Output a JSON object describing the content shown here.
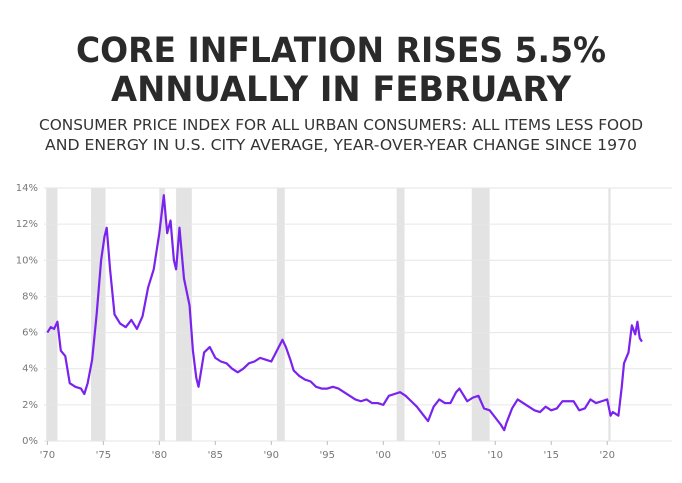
{
  "chart_data": {
    "type": "line",
    "title": [
      "CORE INFLATION RISES 5.5%",
      "ANNUALLY IN FEBRUARY"
    ],
    "subtitle": [
      "CONSUMER PRICE INDEX FOR ALL URBAN CONSUMERS: ALL ITEMS LESS FOOD",
      "AND ENERGY IN U.S. CITY AVERAGE, YEAR-OVER-YEAR CHANGE SINCE 1970"
    ],
    "color": "#7a22ee",
    "recession_color": "#e3e3e3",
    "grid": true,
    "recessions": [
      [
        1969.9,
        1970.9
      ],
      [
        1973.9,
        1975.2
      ],
      [
        1980.0,
        1980.5
      ],
      [
        1981.5,
        1982.9
      ],
      [
        1990.5,
        1991.2
      ],
      [
        2001.2,
        2001.9
      ],
      [
        2007.9,
        2009.5
      ],
      [
        2020.1,
        2020.3
      ]
    ],
    "x": [
      1970.0,
      1970.3,
      1970.6,
      1970.9,
      1971.2,
      1971.6,
      1972.0,
      1972.5,
      1973.0,
      1973.3,
      1973.6,
      1974.0,
      1974.4,
      1974.8,
      1975.1,
      1975.3,
      1975.6,
      1976.0,
      1976.5,
      1977.0,
      1977.5,
      1978.0,
      1978.5,
      1979.0,
      1979.5,
      1980.0,
      1980.4,
      1980.7,
      1981.0,
      1981.3,
      1981.5,
      1981.8,
      1982.2,
      1982.7,
      1983.0,
      1983.3,
      1983.5,
      1984.0,
      1984.5,
      1985.0,
      1985.5,
      1986.0,
      1986.5,
      1987.0,
      1987.5,
      1988.0,
      1988.5,
      1989.0,
      1989.5,
      1990.0,
      1990.5,
      1991.0,
      1991.3,
      1991.7,
      1992.0,
      1992.5,
      1993.0,
      1993.5,
      1994.0,
      1994.5,
      1995.0,
      1995.5,
      1996.0,
      1996.5,
      1997.0,
      1997.5,
      1998.0,
      1998.5,
      1999.0,
      1999.5,
      2000.0,
      2000.5,
      2001.0,
      2001.5,
      2002.0,
      2002.5,
      2003.0,
      2003.5,
      2004.0,
      2004.5,
      2005.0,
      2005.5,
      2006.0,
      2006.5,
      2006.8,
      2007.0,
      2007.5,
      2008.0,
      2008.5,
      2009.0,
      2009.5,
      2010.0,
      2010.5,
      2010.8,
      2011.0,
      2011.5,
      2012.0,
      2012.5,
      2013.0,
      2013.5,
      2014.0,
      2014.5,
      2015.0,
      2015.5,
      2016.0,
      2016.5,
      2017.0,
      2017.5,
      2018.0,
      2018.5,
      2019.0,
      2019.5,
      2020.0,
      2020.3,
      2020.5,
      2021.0,
      2021.3,
      2021.5,
      2021.9,
      2022.2,
      2022.5,
      2022.7,
      2022.9,
      2023.1
    ],
    "values": [
      6.0,
      6.3,
      6.2,
      6.6,
      5.0,
      4.7,
      3.2,
      3.0,
      2.9,
      2.6,
      3.2,
      4.5,
      7.0,
      10.0,
      11.3,
      11.8,
      9.5,
      7.0,
      6.5,
      6.3,
      6.7,
      6.2,
      6.9,
      8.5,
      9.5,
      11.5,
      13.6,
      11.5,
      12.2,
      10.0,
      9.5,
      11.8,
      9.0,
      7.5,
      5.0,
      3.5,
      3.0,
      4.9,
      5.2,
      4.6,
      4.4,
      4.3,
      4.0,
      3.8,
      4.0,
      4.3,
      4.4,
      4.6,
      4.5,
      4.4,
      5.0,
      5.6,
      5.2,
      4.5,
      3.9,
      3.6,
      3.4,
      3.3,
      3.0,
      2.9,
      2.9,
      3.0,
      2.9,
      2.7,
      2.5,
      2.3,
      2.2,
      2.3,
      2.1,
      2.1,
      2.0,
      2.5,
      2.6,
      2.7,
      2.5,
      2.2,
      1.9,
      1.5,
      1.1,
      1.9,
      2.3,
      2.1,
      2.1,
      2.7,
      2.9,
      2.7,
      2.2,
      2.4,
      2.5,
      1.8,
      1.7,
      1.3,
      0.9,
      0.6,
      1.0,
      1.8,
      2.3,
      2.1,
      1.9,
      1.7,
      1.6,
      1.9,
      1.7,
      1.8,
      2.2,
      2.2,
      2.2,
      1.7,
      1.8,
      2.3,
      2.1,
      2.2,
      2.3,
      1.4,
      1.6,
      1.4,
      3.0,
      4.3,
      4.9,
      6.4,
      5.9,
      6.6,
      5.7,
      5.5
    ],
    "xlim": [
      1969.7,
      2024.0
    ],
    "ylim": [
      0,
      14
    ],
    "xticks": [
      {
        "value": 1970,
        "label": "'70"
      },
      {
        "value": 1975,
        "label": "'75"
      },
      {
        "value": 1980,
        "label": "'80"
      },
      {
        "value": 1985,
        "label": "'85"
      },
      {
        "value": 1990,
        "label": "'90"
      },
      {
        "value": 1995,
        "label": "'95"
      },
      {
        "value": 2000,
        "label": "'00"
      },
      {
        "value": 2005,
        "label": "'05"
      },
      {
        "value": 2010,
        "label": "'10"
      },
      {
        "value": 2015,
        "label": "'15"
      },
      {
        "value": 2020,
        "label": "'20"
      }
    ],
    "yticks": [
      {
        "value": 0,
        "label": "0%"
      },
      {
        "value": 2,
        "label": "2%"
      },
      {
        "value": 4,
        "label": "4%"
      },
      {
        "value": 6,
        "label": "6%"
      },
      {
        "value": 8,
        "label": "8%"
      },
      {
        "value": 10,
        "label": "10%"
      },
      {
        "value": 12,
        "label": "12%"
      },
      {
        "value": 14,
        "label": "14%"
      }
    ]
  }
}
